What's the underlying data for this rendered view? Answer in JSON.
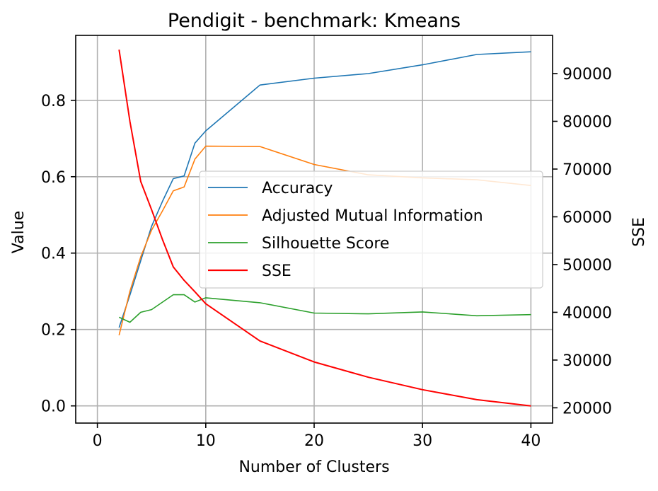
{
  "chart_data": {
    "type": "line",
    "title": "Pendigit - benchmark: Kmeans",
    "xlabel": "Number of Clusters",
    "ylabel": "Value",
    "ylabel_right": "SSE",
    "xlim": [
      -2,
      42
    ],
    "ylim": [
      -0.045,
      0.97
    ],
    "ylim_right": [
      16800,
      98000
    ],
    "xticks": [
      0,
      10,
      20,
      30,
      40
    ],
    "yticks": [
      0.0,
      0.2,
      0.4,
      0.6,
      0.8
    ],
    "yticks_right": [
      20000,
      30000,
      40000,
      50000,
      60000,
      70000,
      80000,
      90000
    ],
    "grid": true,
    "legend_position": "center-right",
    "series": [
      {
        "name": "Accuracy",
        "axis": "left",
        "color": "#1f77b4",
        "x": [
          2,
          3,
          4,
          5,
          6,
          7,
          8,
          9,
          10,
          15,
          20,
          25,
          30,
          35,
          40
        ],
        "y": [
          0.205,
          0.29,
          0.38,
          0.47,
          0.535,
          0.595,
          0.602,
          0.688,
          0.72,
          0.84,
          0.858,
          0.87,
          0.893,
          0.92,
          0.927
        ]
      },
      {
        "name": "Adjusted Mutual Information",
        "axis": "left",
        "color": "#ff7f0e",
        "x": [
          2,
          3,
          4,
          5,
          6,
          7,
          8,
          9,
          10,
          15,
          20,
          25,
          30,
          35,
          40
        ],
        "y": [
          0.185,
          0.3,
          0.39,
          0.46,
          0.51,
          0.563,
          0.573,
          0.646,
          0.68,
          0.679,
          0.632,
          0.605,
          0.597,
          0.592,
          0.577
        ]
      },
      {
        "name": "Silhouette Score",
        "axis": "left",
        "color": "#2ca02c",
        "x": [
          2,
          3,
          4,
          5,
          7,
          8,
          9,
          10,
          15,
          20,
          25,
          30,
          35,
          40
        ],
        "y": [
          0.232,
          0.219,
          0.245,
          0.252,
          0.291,
          0.291,
          0.272,
          0.283,
          0.27,
          0.243,
          0.241,
          0.246,
          0.236,
          0.239
        ]
      },
      {
        "name": "SSE",
        "axis": "right",
        "color": "#ff0000",
        "x": [
          2,
          3,
          4,
          5,
          6,
          7,
          8,
          9,
          10,
          15,
          20,
          25,
          30,
          35,
          40
        ],
        "y": [
          95000,
          80000,
          67400,
          61500,
          55300,
          49500,
          46700,
          44300,
          41800,
          34000,
          29600,
          26400,
          23800,
          21700,
          20400
        ]
      }
    ]
  }
}
